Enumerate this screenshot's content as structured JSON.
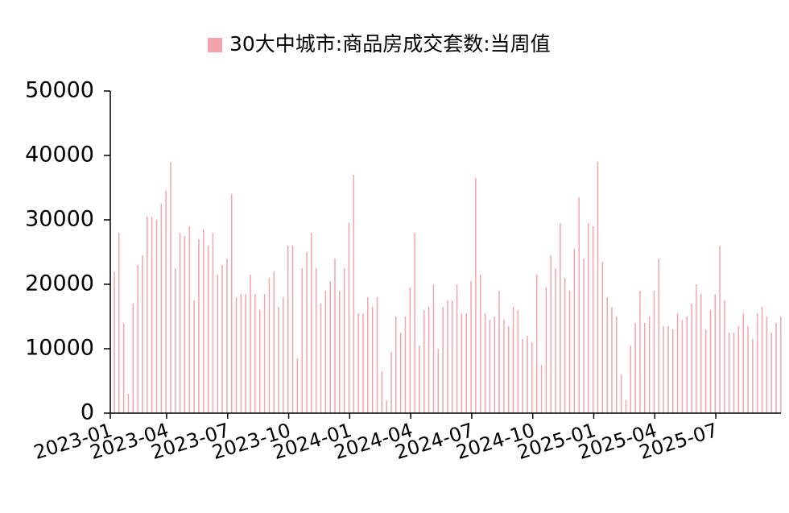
{
  "chart_data": {
    "type": "bar",
    "series": [
      {
        "name": "30大中城市:商品房成交套数:当周值",
        "color": "#f4a3aa",
        "values": [
          22000,
          28000,
          14000,
          3000,
          17000,
          23000,
          24500,
          30500,
          30500,
          30000,
          32500,
          34500,
          39000,
          22500,
          28000,
          27500,
          29000,
          17500,
          27000,
          28500,
          26000,
          28000,
          21500,
          23000,
          24000,
          34000,
          18000,
          18500,
          18500,
          21500,
          18500,
          16000,
          18500,
          21000,
          22000,
          16500,
          18000,
          26000,
          26000,
          8500,
          22500,
          25000,
          28000,
          22500,
          17000,
          19000,
          20500,
          24000,
          19000,
          22500,
          29500,
          37000,
          15500,
          15500,
          18000,
          16500,
          18000,
          6500,
          2000,
          9500,
          15000,
          12500,
          15000,
          19500,
          28000,
          10500,
          16000,
          16500,
          20000,
          10000,
          16500,
          17500,
          17500,
          20000,
          15500,
          15500,
          20500,
          36500,
          21500,
          15500,
          14500,
          15000,
          19000,
          14500,
          13500,
          16500,
          16000,
          11500,
          12000,
          11000,
          21500,
          7500,
          19500,
          24500,
          22500,
          29500,
          21000,
          19000,
          25500,
          33500,
          24000,
          29500,
          29000,
          39000,
          23500,
          18000,
          16500,
          15000,
          6000,
          2000,
          10500,
          14000,
          19000,
          14000,
          15000,
          19000,
          24000,
          13500,
          13500,
          13000,
          15500,
          14500,
          15000,
          17000,
          20000,
          18500,
          13000,
          16000,
          18500,
          26000,
          17500,
          12500,
          12500,
          13500,
          15500,
          13500,
          11500,
          15500,
          16500,
          15000,
          12500,
          14000,
          15000
        ]
      }
    ],
    "categories": [
      "2023-01",
      null,
      null,
      null,
      null,
      null,
      null,
      null,
      null,
      null,
      null,
      null,
      "2023-04",
      null,
      null,
      null,
      null,
      null,
      null,
      null,
      null,
      null,
      null,
      null,
      null,
      "2023-07",
      null,
      null,
      null,
      null,
      null,
      null,
      null,
      null,
      null,
      null,
      null,
      null,
      "2023-10",
      null,
      null,
      null,
      null,
      null,
      null,
      null,
      null,
      null,
      null,
      null,
      null,
      "2024-01",
      null,
      null,
      null,
      null,
      null,
      null,
      null,
      null,
      null,
      null,
      null,
      null,
      "2024-04",
      null,
      null,
      null,
      null,
      null,
      null,
      null,
      null,
      null,
      null,
      null,
      null,
      "2024-07",
      null,
      null,
      null,
      null,
      null,
      null,
      null,
      null,
      null,
      null,
      null,
      null,
      "2024-10",
      null,
      null,
      null,
      null,
      null,
      null,
      null,
      null,
      null,
      null,
      null,
      null,
      "2025-01",
      null,
      null,
      null,
      null,
      null,
      null,
      null,
      null,
      null,
      null,
      null,
      null,
      "2025-04",
      null,
      null,
      null,
      null,
      null,
      null,
      null,
      null,
      null,
      null,
      null,
      null,
      "2025-07",
      null,
      null,
      null,
      null,
      null,
      null,
      null,
      null,
      null,
      null,
      null,
      null,
      null
    ],
    "ylim": [
      0,
      50000
    ],
    "yticks": [
      0,
      10000,
      20000,
      30000,
      40000,
      50000
    ],
    "grid": false,
    "legend": "top"
  }
}
